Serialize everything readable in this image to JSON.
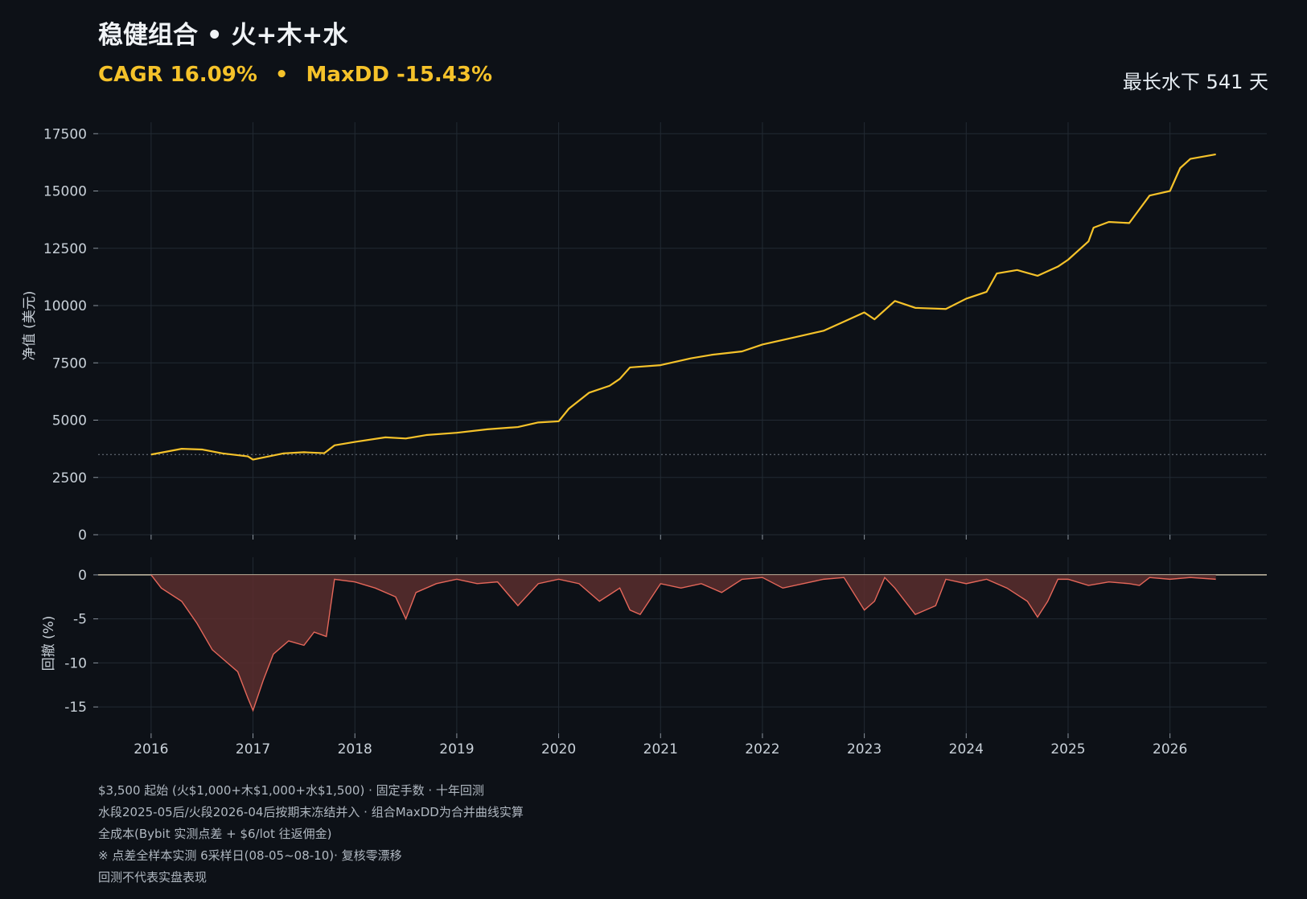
{
  "header": {
    "title": "稳健组合 • 火+木+水",
    "cagr": "CAGR 16.09%",
    "separator": "•",
    "maxdd": "MaxDD -15.43%",
    "underwater": "最长水下 541 天"
  },
  "colors": {
    "background": "#0d1117",
    "equity_line": "#f5c22a",
    "drawdown_line": "#e5675a",
    "drawdown_fill": "#5a2e2e",
    "grid": "#222a33",
    "text": "#c9d1d9"
  },
  "footnotes": [
    "$3,500 起始 (火$1,000+木$1,000+水$1,500) · 固定手数 · 十年回测",
    "水段2025-05后/火段2026-04后按期末冻结并入 · 组合MaxDD为合并曲线实算",
    "全成本(Bybit 实测点差 + $6/lot 往返佣金)",
    "※ 点差全样本实测 6采样日(08-05~08-10)· 复核零漂移",
    "回测不代表实盘表现"
  ],
  "chart_data": [
    {
      "type": "line",
      "name": "equity",
      "ylabel": "净值 (美元)",
      "ylim": [
        0,
        18000
      ],
      "yticks": [
        0,
        2500,
        5000,
        7500,
        10000,
        12500,
        15000,
        17500
      ],
      "baseline": 3500,
      "grid": true,
      "x": [
        2016.0,
        2016.3,
        2016.5,
        2016.7,
        2016.95,
        2017.0,
        2017.3,
        2017.5,
        2017.7,
        2017.8,
        2018.0,
        2018.3,
        2018.5,
        2018.7,
        2019.0,
        2019.3,
        2019.6,
        2019.8,
        2020.0,
        2020.1,
        2020.3,
        2020.5,
        2020.6,
        2020.7,
        2021.0,
        2021.3,
        2021.5,
        2021.8,
        2022.0,
        2022.3,
        2022.6,
        2022.8,
        2023.0,
        2023.1,
        2023.3,
        2023.5,
        2023.8,
        2024.0,
        2024.2,
        2024.3,
        2024.5,
        2024.7,
        2024.9,
        2025.0,
        2025.2,
        2025.25,
        2025.4,
        2025.6,
        2025.8,
        2026.0,
        2026.1,
        2026.2,
        2026.45
      ],
      "y": [
        3500,
        3750,
        3720,
        3550,
        3420,
        3280,
        3550,
        3600,
        3560,
        3900,
        4050,
        4250,
        4200,
        4350,
        4450,
        4600,
        4700,
        4900,
        4950,
        5500,
        6200,
        6500,
        6800,
        7300,
        7400,
        7700,
        7850,
        8000,
        8300,
        8600,
        8900,
        9300,
        9700,
        9400,
        10200,
        9900,
        9850,
        10300,
        10600,
        11400,
        11550,
        11300,
        11700,
        12000,
        12800,
        13400,
        13650,
        13600,
        14800,
        15000,
        16000,
        16400,
        16600
      ]
    },
    {
      "type": "area",
      "name": "drawdown",
      "ylabel": "回撤 (%)",
      "ylim": [
        -18,
        2
      ],
      "yticks": [
        0,
        -5,
        -10,
        -15
      ],
      "grid": true,
      "x": [
        2016.0,
        2016.1,
        2016.3,
        2016.45,
        2016.6,
        2016.75,
        2016.85,
        2016.95,
        2017.0,
        2017.1,
        2017.2,
        2017.35,
        2017.5,
        2017.6,
        2017.72,
        2017.8,
        2018.0,
        2018.2,
        2018.4,
        2018.5,
        2018.6,
        2018.8,
        2019.0,
        2019.2,
        2019.4,
        2019.6,
        2019.8,
        2020.0,
        2020.2,
        2020.4,
        2020.6,
        2020.7,
        2020.8,
        2021.0,
        2021.2,
        2021.4,
        2021.6,
        2021.8,
        2022.0,
        2022.2,
        2022.4,
        2022.6,
        2022.8,
        2023.0,
        2023.1,
        2023.2,
        2023.3,
        2023.5,
        2023.7,
        2023.8,
        2024.0,
        2024.2,
        2024.4,
        2024.6,
        2024.7,
        2024.8,
        2024.9,
        2025.0,
        2025.2,
        2025.4,
        2025.6,
        2025.7,
        2025.8,
        2026.0,
        2026.2,
        2026.45
      ],
      "y": [
        0,
        -1.5,
        -3,
        -5.5,
        -8.5,
        -10,
        -11,
        -14,
        -15.4,
        -12,
        -9,
        -7.5,
        -8,
        -6.5,
        -7,
        -0.5,
        -0.8,
        -1.5,
        -2.5,
        -5,
        -2,
        -1,
        -0.5,
        -1,
        -0.8,
        -3.5,
        -1,
        -0.5,
        -1,
        -3,
        -1.5,
        -4,
        -4.5,
        -1,
        -1.5,
        -1,
        -2,
        -0.5,
        -0.3,
        -1.5,
        -1,
        -0.5,
        -0.3,
        -4,
        -3,
        -0.3,
        -1.5,
        -4.5,
        -3.5,
        -0.5,
        -1,
        -0.5,
        -1.5,
        -3,
        -4.8,
        -3,
        -0.5,
        -0.5,
        -1.2,
        -0.8,
        -1,
        -1.2,
        -0.3,
        -0.5,
        -0.3,
        -0.5
      ]
    }
  ],
  "xaxis": {
    "ticks": [
      "2016",
      "2017",
      "2018",
      "2019",
      "2020",
      "2021",
      "2022",
      "2023",
      "2024",
      "2025",
      "2026"
    ],
    "xlim": [
      2015.48,
      2026.95
    ]
  }
}
